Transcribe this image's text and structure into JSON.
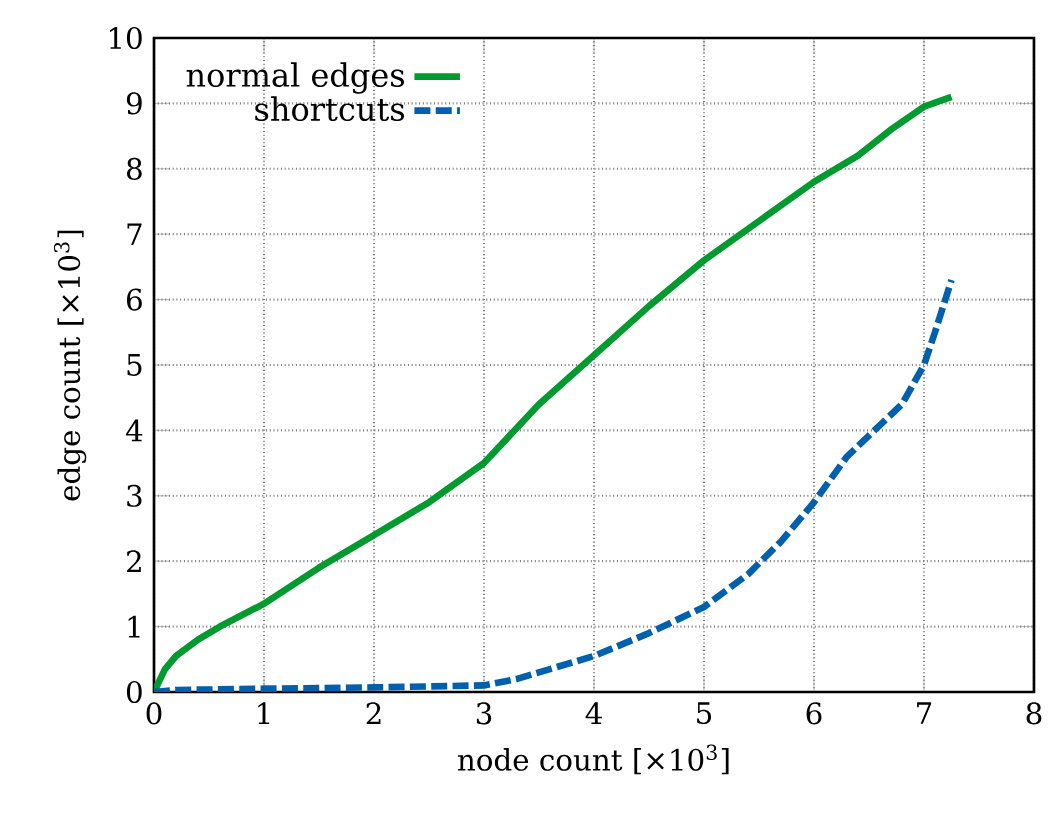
{
  "chart_data": {
    "type": "line",
    "xlabel": "node count [×10$^{3}$]",
    "ylabel": "edge count [×10$^{3}$]",
    "xlim": [
      0,
      8
    ],
    "ylim": [
      0,
      10
    ],
    "xticks": [
      0,
      1,
      2,
      3,
      4,
      5,
      6,
      7,
      8
    ],
    "yticks": [
      0,
      1,
      2,
      3,
      4,
      5,
      6,
      7,
      8,
      9,
      10
    ],
    "grid": true,
    "legend": "top left",
    "marker": "none",
    "series": [
      {
        "name": "normal edges",
        "color": "#009a2e",
        "line_style": "solid",
        "x": [
          0,
          0.1,
          0.2,
          0.4,
          0.6,
          1,
          1.5,
          2,
          2.5,
          3,
          3.5,
          4,
          4.5,
          5,
          5.5,
          6,
          6.4,
          6.7,
          7,
          7.25
        ],
        "values": [
          0,
          0.35,
          0.55,
          0.8,
          1.0,
          1.35,
          1.9,
          2.4,
          2.9,
          3.5,
          4.4,
          5.15,
          5.9,
          6.6,
          7.2,
          7.8,
          8.2,
          8.6,
          8.95,
          9.1
        ]
      },
      {
        "name": "shortcuts",
        "color": "#0060ad",
        "line_style": "dashed",
        "x": [
          0,
          0.2,
          1,
          2,
          3,
          3.3,
          3.6,
          4,
          4.5,
          5,
          5.4,
          5.7,
          6,
          6.3,
          6.55,
          6.8,
          7,
          7.1,
          7.25
        ],
        "values": [
          0,
          0.03,
          0.05,
          0.07,
          0.1,
          0.2,
          0.35,
          0.55,
          0.9,
          1.3,
          1.8,
          2.3,
          2.9,
          3.6,
          4.0,
          4.4,
          5.0,
          5.5,
          6.3
        ]
      }
    ]
  }
}
